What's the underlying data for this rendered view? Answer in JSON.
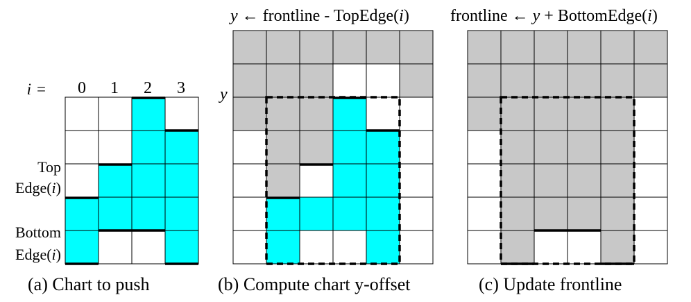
{
  "colors": {
    "cyan": "#00FFFF",
    "gray": "#C8C8C8",
    "white": "#FFFFFF",
    "line": "#000000"
  },
  "panel_a": {
    "index_label": "i =",
    "columns": [
      "0",
      "1",
      "2",
      "3"
    ],
    "top_label_1": "Top",
    "top_label_2": "Edge(",
    "bottom_label_1": "Bottom",
    "bottom_label_2": "Edge(",
    "index_var": "i",
    "close_paren": ")",
    "caption": "(a) Chart to push",
    "cells": [
      "WWCW",
      "WWCC",
      "WCCC",
      "CCCC",
      "CWWC"
    ]
  },
  "panel_b": {
    "title_var": "y",
    "title_mid": " ← frontline - TopEdge(",
    "title_end": ")",
    "y_marker": "y",
    "caption": "(b) Compute chart y-offset",
    "cells": [
      "GGGGGG",
      "GGGWWG",
      "GGGCWW",
      "WGGCCW",
      "WGWCCW",
      "WCCCCW",
      "WCWWCW"
    ]
  },
  "panel_c": {
    "title_start": "frontline ← ",
    "title_var": "y",
    "title_mid": " + BottomEdge(",
    "title_end": ")",
    "caption": "(c) Update frontline",
    "cells": [
      "GGGGGG",
      "GGGGGG",
      "GGGGGW",
      "WGGGGW",
      "WGGGGW",
      "WGGGGW",
      "WGWWGW"
    ]
  }
}
